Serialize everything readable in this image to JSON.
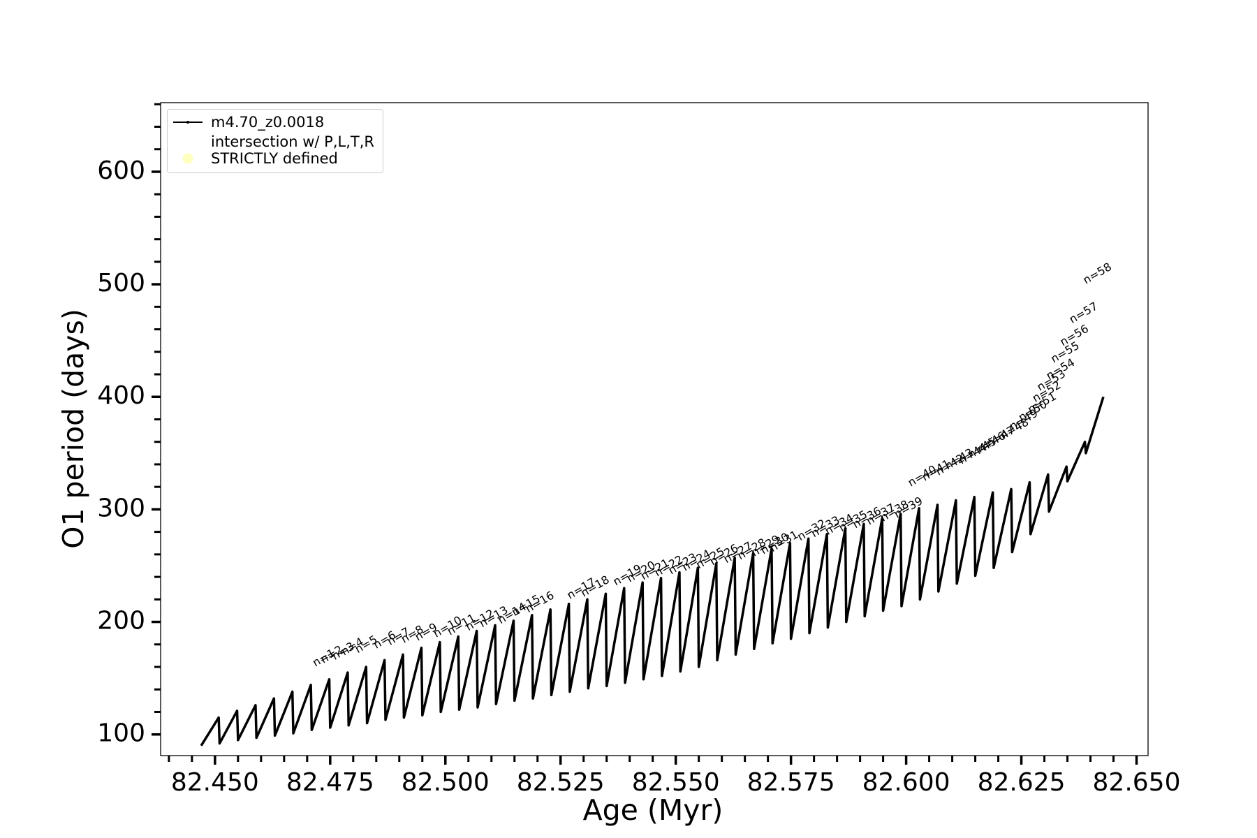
{
  "chart_data": {
    "type": "line",
    "xlabel": "Age (Myr)",
    "ylabel": "O1 period (days)",
    "xlim": [
      82.4382,
      82.6525
    ],
    "ylim": [
      81.2,
      661.4
    ],
    "xticks": [
      {
        "value": 82.45,
        "label": "82.450"
      },
      {
        "value": 82.475,
        "label": "82.475"
      },
      {
        "value": 82.5,
        "label": "82.500"
      },
      {
        "value": 82.525,
        "label": "82.525"
      },
      {
        "value": 82.55,
        "label": "82.550"
      },
      {
        "value": 82.575,
        "label": "82.575"
      },
      {
        "value": 82.6,
        "label": "82.600"
      },
      {
        "value": 82.625,
        "label": "82.625"
      },
      {
        "value": 82.65,
        "label": "82.650"
      }
    ],
    "xminorticks": [
      82.44,
      82.445,
      82.455,
      82.46,
      82.465,
      82.47,
      82.48,
      82.485,
      82.49,
      82.495,
      82.505,
      82.51,
      82.515,
      82.52,
      82.53,
      82.535,
      82.54,
      82.545,
      82.555,
      82.56,
      82.565,
      82.57,
      82.58,
      82.585,
      82.59,
      82.595,
      82.605,
      82.61,
      82.615,
      82.62,
      82.63,
      82.635,
      82.64,
      82.645
    ],
    "yticks": [
      100,
      200,
      300,
      400,
      500,
      600
    ],
    "yminorticks": [
      120,
      140,
      160,
      180,
      220,
      240,
      260,
      280,
      320,
      340,
      360,
      380,
      420,
      440,
      460,
      480,
      520,
      540,
      560,
      580,
      620,
      640,
      660
    ],
    "legend": "upper left",
    "series": [
      {
        "name": "m4.70_z0.0018",
        "color": "#000000",
        "type": "line",
        "x": [
          82.447,
          82.4508,
          82.451,
          82.4548,
          82.455,
          82.4588,
          82.459,
          82.4628,
          82.463,
          82.4668,
          82.467,
          82.4708,
          82.471,
          82.4748,
          82.475,
          82.4788,
          82.479,
          82.4828,
          82.483,
          82.4868,
          82.487,
          82.4908,
          82.491,
          82.4948,
          82.495,
          82.4988,
          82.499,
          82.5028,
          82.503,
          82.5068,
          82.507,
          82.5108,
          82.511,
          82.5148,
          82.515,
          82.5188,
          82.519,
          82.5228,
          82.523,
          82.5268,
          82.527,
          82.5308,
          82.531,
          82.5348,
          82.535,
          82.5388,
          82.539,
          82.5428,
          82.543,
          82.5468,
          82.547,
          82.5508,
          82.551,
          82.5548,
          82.555,
          82.5588,
          82.559,
          82.5628,
          82.563,
          82.5668,
          82.567,
          82.5708,
          82.571,
          82.5748,
          82.575,
          82.5788,
          82.579,
          82.5828,
          82.583,
          82.5868,
          82.587,
          82.5908,
          82.591,
          82.5948,
          82.595,
          82.5988,
          82.599,
          82.6028,
          82.603,
          82.6068,
          82.607,
          82.6108,
          82.611,
          82.6148,
          82.615,
          82.6188,
          82.619,
          82.6228,
          82.623,
          82.6268,
          82.627,
          82.6308,
          82.631,
          82.6348,
          82.635,
          82.6388,
          82.639,
          82.6428
        ],
        "values": [
          90,
          115,
          92,
          121,
          95,
          126,
          97,
          132,
          99,
          138,
          101,
          144,
          104,
          149,
          106,
          155,
          108,
          160,
          110,
          166,
          113,
          171,
          115,
          177,
          117,
          182,
          120,
          187,
          122,
          192,
          124,
          197,
          127,
          201,
          130,
          206,
          132,
          211,
          135,
          216,
          138,
          220,
          141,
          225,
          143,
          230,
          146,
          235,
          149,
          239,
          152,
          244,
          156,
          248,
          160,
          252,
          166,
          257,
          171,
          261,
          176,
          265,
          181,
          270,
          185,
          274,
          190,
          278,
          195,
          283,
          200,
          287,
          205,
          292,
          210,
          296,
          214,
          301,
          220,
          304,
          227,
          308,
          234,
          311,
          241,
          315,
          248,
          318,
          262,
          324,
          278,
          331,
          298,
          338,
          325,
          360,
          350,
          400
        ]
      },
      {
        "name": "intersection w/ P,L,T,R\nSTRICTLY defined",
        "color": "#ffffc0",
        "type": "scatter",
        "x": [],
        "values": []
      }
    ],
    "annotations": [
      {
        "text": "n=1",
        "x": 82.4718,
        "y": 160
      },
      {
        "text": "n=2",
        "x": 82.4735,
        "y": 163
      },
      {
        "text": "n=3",
        "x": 82.476,
        "y": 166
      },
      {
        "text": "n=4",
        "x": 82.478,
        "y": 170
      },
      {
        "text": "n=5",
        "x": 82.481,
        "y": 172
      },
      {
        "text": "n=6",
        "x": 82.485,
        "y": 176
      },
      {
        "text": "n=7",
        "x": 82.488,
        "y": 179
      },
      {
        "text": "n=8",
        "x": 82.491,
        "y": 181
      },
      {
        "text": "n=9",
        "x": 82.494,
        "y": 183
      },
      {
        "text": "n=10",
        "x": 82.498,
        "y": 186
      },
      {
        "text": "n=11",
        "x": 82.501,
        "y": 188
      },
      {
        "text": "n=12",
        "x": 82.505,
        "y": 192
      },
      {
        "text": "n=13",
        "x": 82.508,
        "y": 195
      },
      {
        "text": "n=14",
        "x": 82.512,
        "y": 198
      },
      {
        "text": "n=15",
        "x": 82.515,
        "y": 205
      },
      {
        "text": "n=16",
        "x": 82.518,
        "y": 208
      },
      {
        "text": "n=17",
        "x": 82.527,
        "y": 220
      },
      {
        "text": "n=18",
        "x": 82.53,
        "y": 222
      },
      {
        "text": "n=19",
        "x": 82.537,
        "y": 232
      },
      {
        "text": "n=20",
        "x": 82.54,
        "y": 235
      },
      {
        "text": "n=21",
        "x": 82.543,
        "y": 237
      },
      {
        "text": "n=22",
        "x": 82.546,
        "y": 240
      },
      {
        "text": "n=23",
        "x": 82.549,
        "y": 242
      },
      {
        "text": "n=24",
        "x": 82.552,
        "y": 245
      },
      {
        "text": "n=25",
        "x": 82.555,
        "y": 247
      },
      {
        "text": "n=26",
        "x": 82.558,
        "y": 250
      },
      {
        "text": "n=27",
        "x": 82.561,
        "y": 252
      },
      {
        "text": "n=28",
        "x": 82.564,
        "y": 255
      },
      {
        "text": "n=29",
        "x": 82.567,
        "y": 258
      },
      {
        "text": "n=30",
        "x": 82.569,
        "y": 260
      },
      {
        "text": "n=31",
        "x": 82.571,
        "y": 262
      },
      {
        "text": "n=32",
        "x": 82.577,
        "y": 272
      },
      {
        "text": "n=33",
        "x": 82.58,
        "y": 275
      },
      {
        "text": "n=34",
        "x": 82.583,
        "y": 277
      },
      {
        "text": "n=35",
        "x": 82.586,
        "y": 280
      },
      {
        "text": "n=36",
        "x": 82.589,
        "y": 283
      },
      {
        "text": "n=37",
        "x": 82.592,
        "y": 286
      },
      {
        "text": "n=38",
        "x": 82.595,
        "y": 289
      },
      {
        "text": "n=39",
        "x": 82.598,
        "y": 292
      },
      {
        "text": "n=40",
        "x": 82.601,
        "y": 320
      },
      {
        "text": "n=41",
        "x": 82.604,
        "y": 325
      },
      {
        "text": "n=42",
        "x": 82.607,
        "y": 330
      },
      {
        "text": "n=43",
        "x": 82.609,
        "y": 335
      },
      {
        "text": "n=44",
        "x": 82.612,
        "y": 340
      },
      {
        "text": "n=45",
        "x": 82.614,
        "y": 345
      },
      {
        "text": "n=46",
        "x": 82.616,
        "y": 350
      },
      {
        "text": "n=47",
        "x": 82.618,
        "y": 355
      },
      {
        "text": "n=48",
        "x": 82.621,
        "y": 362
      },
      {
        "text": "n=49",
        "x": 82.623,
        "y": 370
      },
      {
        "text": "n=50",
        "x": 82.625,
        "y": 378
      },
      {
        "text": "n=51",
        "x": 82.627,
        "y": 385
      },
      {
        "text": "n=52",
        "x": 82.628,
        "y": 395
      },
      {
        "text": "n=53",
        "x": 82.629,
        "y": 405
      },
      {
        "text": "n=54",
        "x": 82.631,
        "y": 415
      },
      {
        "text": "n=55",
        "x": 82.632,
        "y": 430
      },
      {
        "text": "n=56",
        "x": 82.634,
        "y": 445
      },
      {
        "text": "n=57",
        "x": 82.636,
        "y": 465
      },
      {
        "text": "n=58",
        "x": 82.639,
        "y": 500
      }
    ]
  }
}
